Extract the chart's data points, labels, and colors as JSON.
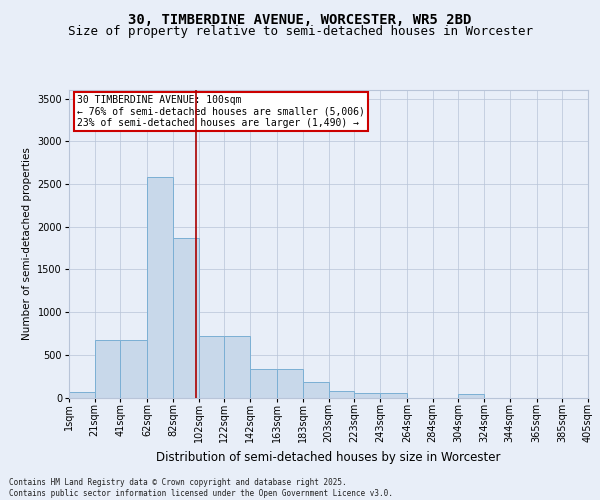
{
  "title1": "30, TIMBERDINE AVENUE, WORCESTER, WR5 2BD",
  "title2": "Size of property relative to semi-detached houses in Worcester",
  "xlabel": "Distribution of semi-detached houses by size in Worcester",
  "ylabel": "Number of semi-detached properties",
  "footer": "Contains HM Land Registry data © Crown copyright and database right 2025.\nContains public sector information licensed under the Open Government Licence v3.0.",
  "annotation_title": "30 TIMBERDINE AVENUE: 100sqm",
  "annotation_line1": "← 76% of semi-detached houses are smaller (5,006)",
  "annotation_line2": "23% of semi-detached houses are larger (1,490) →",
  "property_size": 100,
  "bins": [
    1,
    21,
    41,
    62,
    82,
    102,
    122,
    142,
    163,
    183,
    203,
    223,
    243,
    264,
    284,
    304,
    324,
    344,
    365,
    385,
    405
  ],
  "heights": [
    70,
    670,
    670,
    2580,
    1870,
    720,
    720,
    330,
    330,
    180,
    80,
    50,
    50,
    0,
    0,
    40,
    0,
    0,
    0,
    0
  ],
  "bar_color": "#c8d8ea",
  "bar_edge_color": "#7bafd4",
  "vline_color": "#aa0000",
  "ylim": [
    0,
    3600
  ],
  "yticks": [
    0,
    500,
    1000,
    1500,
    2000,
    2500,
    3000,
    3500
  ],
  "bg_color": "#e8eef8",
  "grid_color": "#b8c4d8",
  "annotation_box_facecolor": "#ffffff",
  "annotation_box_edgecolor": "#cc0000",
  "title1_fontsize": 10,
  "title2_fontsize": 9,
  "tick_fontsize": 7,
  "ylabel_fontsize": 7.5,
  "xlabel_fontsize": 8.5,
  "annotation_fontsize": 7,
  "footer_fontsize": 5.5
}
